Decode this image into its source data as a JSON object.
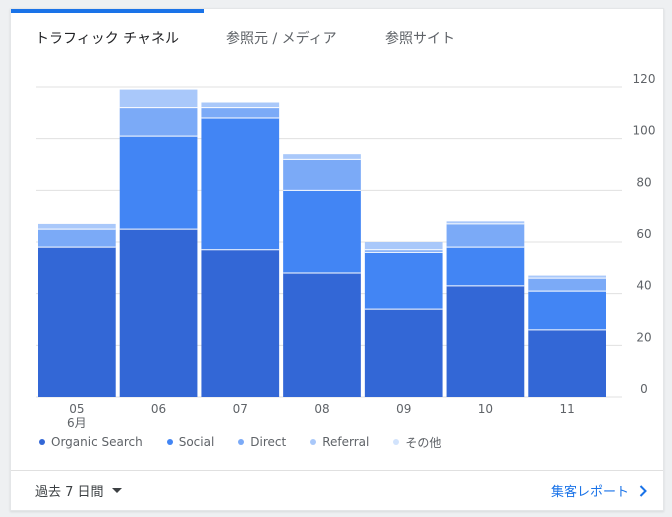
{
  "tabs": [
    {
      "label": "トラフィック チャネル",
      "active": true
    },
    {
      "label": "参照元 / メディア",
      "active": false
    },
    {
      "label": "参照サイト",
      "active": false
    }
  ],
  "colors": {
    "accent": "#1a73e8",
    "series": [
      "#3367d6",
      "#4285f4",
      "#7baaf7",
      "#a9c8fa",
      "#d2e3fc"
    ]
  },
  "chart_data": {
    "type": "bar",
    "stacked": true,
    "categories": [
      "05",
      "06",
      "07",
      "08",
      "09",
      "10",
      "11"
    ],
    "category_sublabels": [
      "6月",
      "",
      "",
      "",
      "",
      "",
      ""
    ],
    "series": [
      {
        "name": "Organic Search",
        "values": [
          58,
          65,
          57,
          48,
          34,
          43,
          26
        ]
      },
      {
        "name": "Social",
        "values": [
          0,
          36,
          51,
          32,
          22,
          15,
          15
        ]
      },
      {
        "name": "Direct",
        "values": [
          7,
          11,
          4,
          12,
          1,
          9,
          5
        ]
      },
      {
        "name": "Referral",
        "values": [
          2,
          7,
          2,
          2,
          3,
          1,
          1
        ]
      },
      {
        "name": "その他",
        "values": [
          0,
          0,
          0,
          0,
          0,
          0,
          0
        ]
      }
    ],
    "y_ticks": [
      "0",
      "20",
      "40",
      "60",
      "80",
      "100",
      "120"
    ],
    "ylim": [
      0,
      120
    ],
    "y_axis_position": "right",
    "grid": true,
    "legend_position": "bottom-left"
  },
  "footer": {
    "range_label": "過去 7 日間",
    "report_link": "集客レポート"
  }
}
